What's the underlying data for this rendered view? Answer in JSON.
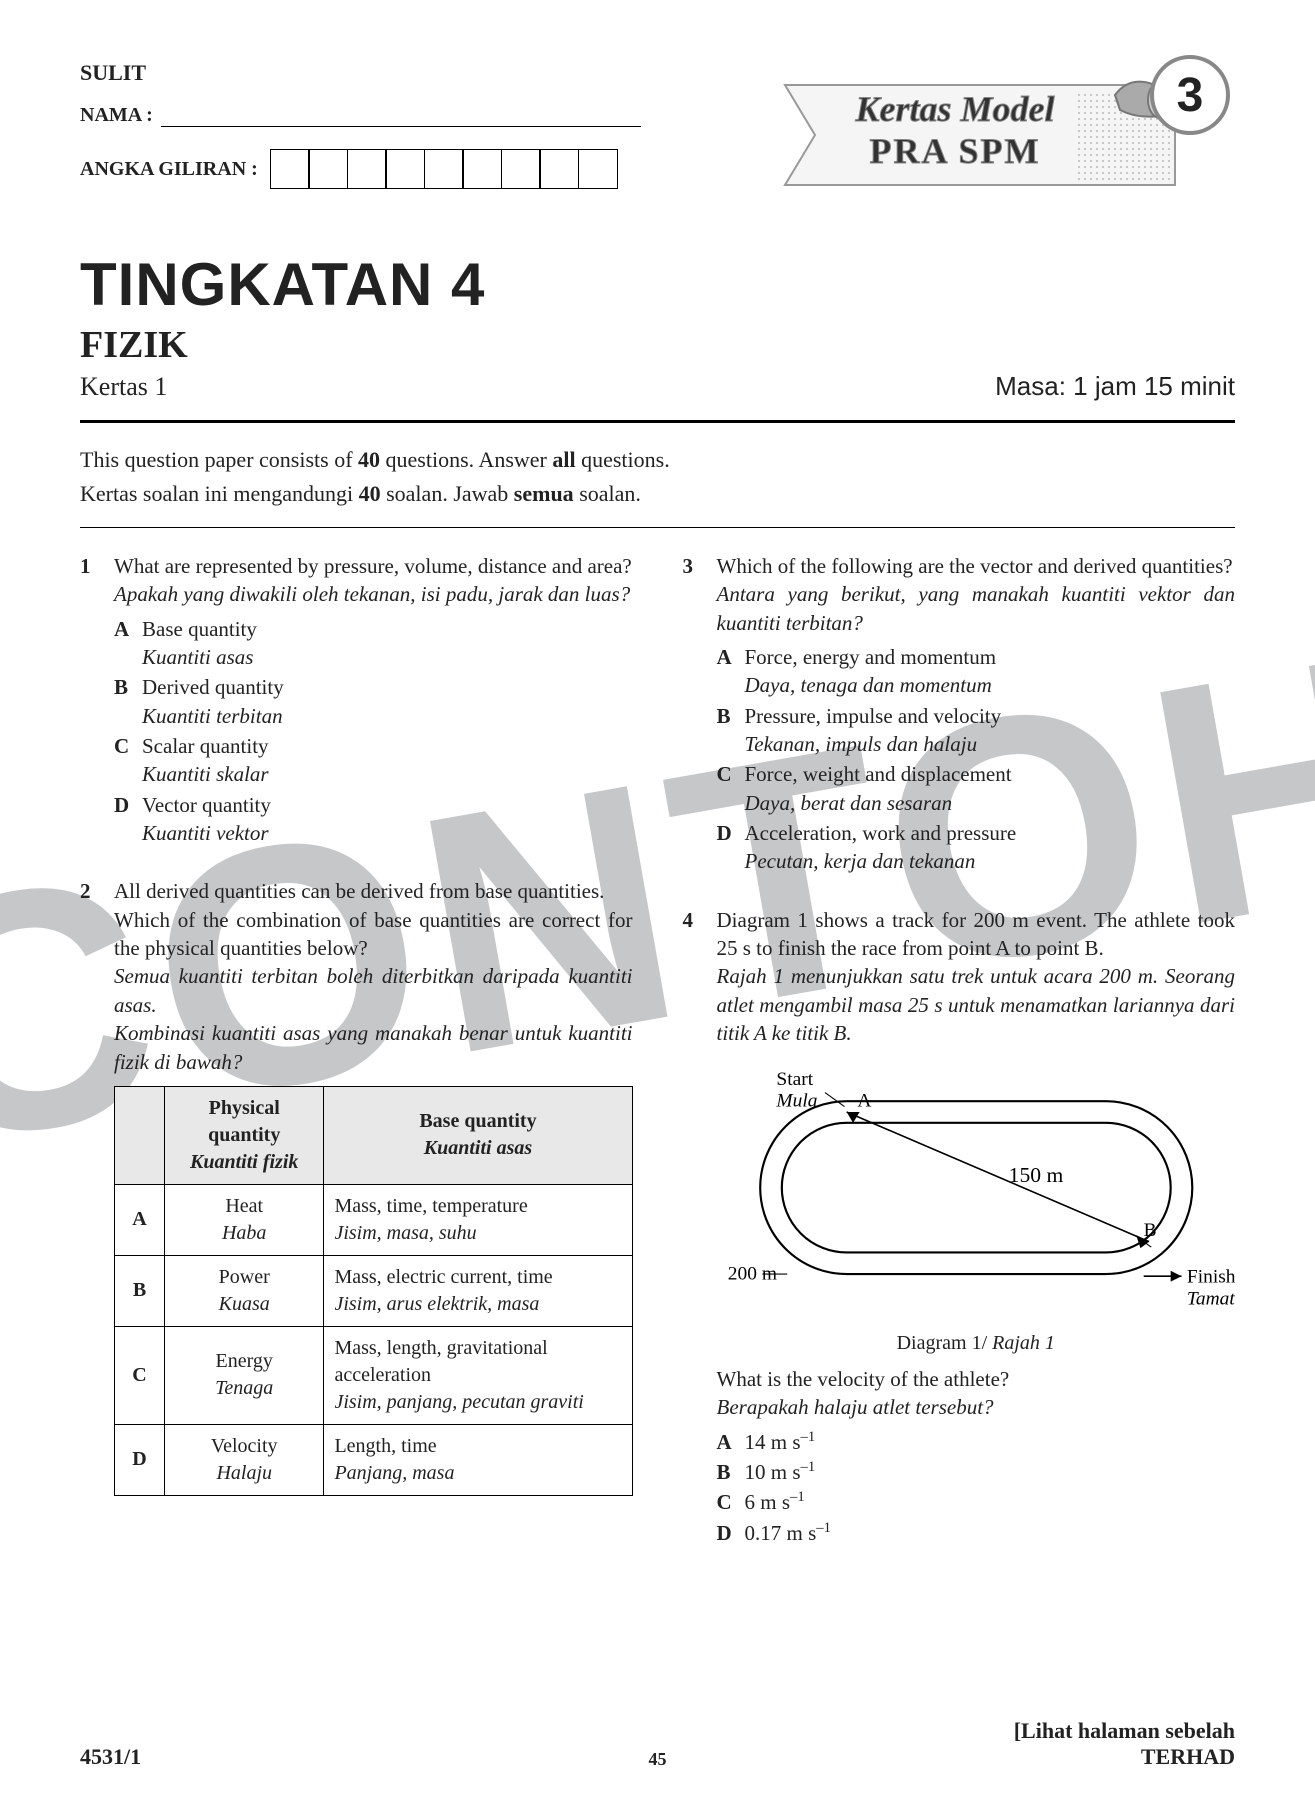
{
  "watermark": "CONTOH",
  "header": {
    "sulit": "SULIT",
    "nama_label": "NAMA :",
    "angka_label": "ANGKA GILIRAN :",
    "num_boxes": 9
  },
  "banner": {
    "line1": "Kertas Model",
    "line2": "PRA SPM",
    "badge": "3"
  },
  "title": {
    "main": "TINGKATAN 4",
    "subject": "FIZIK",
    "paper": "Kertas 1",
    "time": "Masa: 1 jam 15 minit"
  },
  "instructions": {
    "en_pre": "This question paper consists of ",
    "en_bold1": "40",
    "en_mid": " questions. Answer ",
    "en_bold2": "all",
    "en_post": " questions.",
    "ms_pre": "Kertas soalan ini mengandungi ",
    "ms_bold1": "40",
    "ms_mid": " soalan. Jawab ",
    "ms_bold2": "semua",
    "ms_post": " soalan."
  },
  "q1": {
    "num": "1",
    "en": "What are represented by pressure, volume, distance and area?",
    "ms": "Apakah yang diwakili oleh tekanan, isi padu, jarak dan luas?",
    "opts": [
      {
        "l": "A",
        "en": "Base quantity",
        "ms": "Kuantiti asas"
      },
      {
        "l": "B",
        "en": "Derived quantity",
        "ms": "Kuantiti terbitan"
      },
      {
        "l": "C",
        "en": "Scalar quantity",
        "ms": "Kuantiti skalar"
      },
      {
        "l": "D",
        "en": "Vector quantity",
        "ms": "Kuantiti vektor"
      }
    ]
  },
  "q2": {
    "num": "2",
    "en1": "All derived quantities can be derived from base quantities.",
    "en2": "Which of the combination of base quantities are correct for the physical quantities below?",
    "ms1": "Semua kuantiti terbitan boleh diterbitkan daripada kuantiti asas.",
    "ms2": "Kombinasi kuantiti asas yang manakah benar untuk kuantiti fizik di bawah?",
    "headers": {
      "col1_en": "Physical quantity",
      "col1_ms": "Kuantiti fizik",
      "col2_en": "Base quantity",
      "col2_ms": "Kuantiti asas"
    },
    "rows": [
      {
        "l": "A",
        "pq_en": "Heat",
        "pq_ms": "Haba",
        "bq_en": "Mass, time, temperature",
        "bq_ms": "Jisim, masa, suhu"
      },
      {
        "l": "B",
        "pq_en": "Power",
        "pq_ms": "Kuasa",
        "bq_en": "Mass, electric current, time",
        "bq_ms": "Jisim, arus elektrik, masa"
      },
      {
        "l": "C",
        "pq_en": "Energy",
        "pq_ms": "Tenaga",
        "bq_en": "Mass, length, gravitational acceleration",
        "bq_ms": "Jisim, panjang, pecutan graviti"
      },
      {
        "l": "D",
        "pq_en": "Velocity",
        "pq_ms": "Halaju",
        "bq_en": "Length, time",
        "bq_ms": "Panjang, masa"
      }
    ]
  },
  "q3": {
    "num": "3",
    "en": "Which of the following are the vector and derived quantities?",
    "ms": "Antara yang berikut, yang manakah kuantiti vektor dan kuantiti terbitan?",
    "opts": [
      {
        "l": "A",
        "en": "Force, energy and momentum",
        "ms": "Daya, tenaga dan momentum"
      },
      {
        "l": "B",
        "en": "Pressure, impulse and velocity",
        "ms": "Tekanan, impuls dan halaju"
      },
      {
        "l": "C",
        "en": "Force, weight and displacement",
        "ms": "Daya, berat dan sesaran"
      },
      {
        "l": "D",
        "en": "Acceleration, work and pressure",
        "ms": "Pecutan, kerja dan tekanan"
      }
    ]
  },
  "q4": {
    "num": "4",
    "en": "Diagram 1 shows a track for 200 m event. The athlete took 25 s to finish the race from point A to point B.",
    "ms": "Rajah 1 menunjukkan satu trek untuk acara 200 m. Seorang atlet mengambil masa 25 s untuk menamatkan lariannya dari titik A ke titik B.",
    "diagram": {
      "start_en": "Start",
      "start_ms": "Mula",
      "finish_en": "Finish",
      "finish_ms": "Tamat",
      "pointA": "A",
      "pointB": "B",
      "dist": "150 m",
      "width": "200 m",
      "caption_en": "Diagram 1/ ",
      "caption_ms": "Rajah 1"
    },
    "sub_en": "What is the velocity of the athlete?",
    "sub_ms": "Berapakah halaju atlet tersebut?",
    "opts": [
      {
        "l": "A",
        "v": "14 m s"
      },
      {
        "l": "B",
        "v": "10 m s"
      },
      {
        "l": "C",
        "v": "6 m s"
      },
      {
        "l": "D",
        "v": "0.17 m s"
      }
    ]
  },
  "footer": {
    "left": "4531/1",
    "mid": "45",
    "right1": "[Lihat halaman sebelah",
    "right2": "TERHAD"
  }
}
